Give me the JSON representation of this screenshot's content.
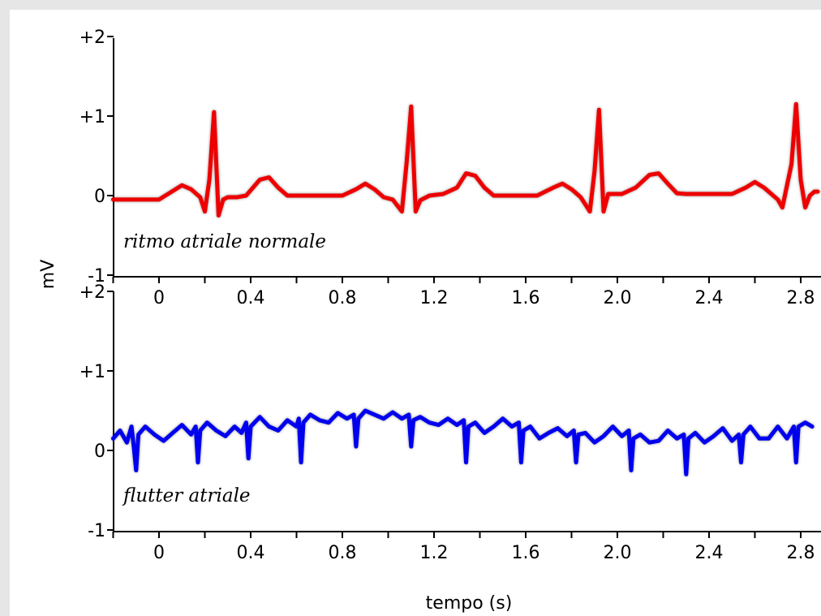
{
  "chart_data": {
    "type": "line",
    "ylabel": "mV",
    "xlabel": "tempo (s)",
    "x_ticks": [
      "0",
      "0.4",
      "0.8",
      "1.2",
      "1.6",
      "2.0",
      "2.4",
      "2.8"
    ],
    "x_tick_values": [
      0,
      0.4,
      0.8,
      1.2,
      1.6,
      2.0,
      2.4,
      2.8
    ],
    "xlim": [
      -0.2,
      2.9
    ],
    "ylim": [
      -1,
      2
    ],
    "y_ticks": [
      "-1",
      "0",
      "+1",
      "+2"
    ],
    "y_tick_values": [
      -1,
      0,
      1,
      2
    ],
    "grid": false,
    "panels": [
      {
        "annotation": "ritmo atriale normale",
        "color": "#ee0000",
        "series": {
          "x": [
            -0.2,
            -0.1,
            0.0,
            0.05,
            0.1,
            0.14,
            0.18,
            0.2,
            0.22,
            0.24,
            0.26,
            0.28,
            0.3,
            0.34,
            0.38,
            0.44,
            0.48,
            0.52,
            0.56,
            0.62,
            0.7,
            0.8,
            0.86,
            0.9,
            0.94,
            0.98,
            1.02,
            1.06,
            1.08,
            1.1,
            1.12,
            1.14,
            1.18,
            1.24,
            1.3,
            1.34,
            1.38,
            1.42,
            1.46,
            1.55,
            1.65,
            1.72,
            1.76,
            1.8,
            1.84,
            1.88,
            1.9,
            1.92,
            1.94,
            1.96,
            1.98,
            2.02,
            2.08,
            2.14,
            2.18,
            2.22,
            2.26,
            2.3,
            2.4,
            2.5,
            2.56,
            2.6,
            2.64,
            2.68,
            2.7,
            2.72,
            2.76,
            2.78,
            2.8,
            2.82,
            2.84,
            2.86,
            2.88
          ],
          "y": [
            -0.05,
            -0.05,
            -0.05,
            0.04,
            0.13,
            0.08,
            -0.02,
            -0.2,
            0.2,
            1.05,
            -0.25,
            -0.05,
            -0.02,
            -0.02,
            0.0,
            0.2,
            0.23,
            0.1,
            0.0,
            0.0,
            0.0,
            0.0,
            0.08,
            0.15,
            0.08,
            -0.02,
            -0.05,
            -0.2,
            0.4,
            1.12,
            -0.2,
            -0.06,
            0.0,
            0.02,
            0.1,
            0.28,
            0.25,
            0.1,
            0.0,
            0.0,
            0.0,
            0.1,
            0.15,
            0.08,
            -0.02,
            -0.2,
            0.3,
            1.08,
            -0.2,
            0.02,
            0.02,
            0.02,
            0.1,
            0.26,
            0.28,
            0.15,
            0.03,
            0.02,
            0.02,
            0.02,
            0.1,
            0.17,
            0.1,
            0.0,
            -0.05,
            -0.15,
            0.4,
            1.15,
            0.2,
            -0.15,
            0.0,
            0.05,
            0.05
          ]
        }
      },
      {
        "annotation": "flutter atriale",
        "color": "#0000ee",
        "series": {
          "x": [
            -0.2,
            -0.17,
            -0.14,
            -0.12,
            -0.11,
            -0.1,
            -0.09,
            -0.06,
            -0.02,
            0.02,
            0.06,
            0.1,
            0.14,
            0.16,
            0.17,
            0.18,
            0.21,
            0.25,
            0.29,
            0.33,
            0.36,
            0.38,
            0.39,
            0.4,
            0.44,
            0.48,
            0.52,
            0.56,
            0.6,
            0.61,
            0.62,
            0.63,
            0.66,
            0.7,
            0.74,
            0.78,
            0.82,
            0.85,
            0.86,
            0.87,
            0.9,
            0.94,
            0.98,
            1.02,
            1.06,
            1.09,
            1.1,
            1.11,
            1.14,
            1.18,
            1.22,
            1.26,
            1.3,
            1.33,
            1.34,
            1.35,
            1.38,
            1.42,
            1.46,
            1.5,
            1.54,
            1.57,
            1.58,
            1.59,
            1.62,
            1.66,
            1.7,
            1.74,
            1.78,
            1.81,
            1.82,
            1.83,
            1.86,
            1.9,
            1.94,
            1.98,
            2.02,
            2.05,
            2.06,
            2.07,
            2.1,
            2.14,
            2.18,
            2.22,
            2.26,
            2.29,
            2.3,
            2.31,
            2.34,
            2.38,
            2.42,
            2.46,
            2.5,
            2.53,
            2.54,
            2.55,
            2.58,
            2.62,
            2.66,
            2.7,
            2.74,
            2.77,
            2.78,
            2.79,
            2.82,
            2.85
          ],
          "y": [
            0.15,
            0.25,
            0.1,
            0.3,
            0.05,
            -0.25,
            0.2,
            0.3,
            0.2,
            0.12,
            0.22,
            0.32,
            0.2,
            0.3,
            -0.15,
            0.25,
            0.35,
            0.25,
            0.18,
            0.3,
            0.22,
            0.35,
            -0.1,
            0.3,
            0.42,
            0.3,
            0.25,
            0.38,
            0.3,
            0.4,
            -0.15,
            0.35,
            0.45,
            0.38,
            0.35,
            0.47,
            0.4,
            0.45,
            0.05,
            0.4,
            0.5,
            0.45,
            0.4,
            0.48,
            0.4,
            0.45,
            0.05,
            0.38,
            0.42,
            0.35,
            0.32,
            0.4,
            0.32,
            0.38,
            -0.15,
            0.3,
            0.35,
            0.22,
            0.3,
            0.4,
            0.3,
            0.35,
            -0.15,
            0.25,
            0.3,
            0.15,
            0.22,
            0.28,
            0.18,
            0.25,
            -0.15,
            0.2,
            0.22,
            0.1,
            0.18,
            0.3,
            0.18,
            0.25,
            -0.25,
            0.15,
            0.2,
            0.1,
            0.12,
            0.25,
            0.15,
            0.2,
            -0.3,
            0.15,
            0.22,
            0.1,
            0.18,
            0.28,
            0.12,
            0.2,
            -0.15,
            0.2,
            0.3,
            0.15,
            0.15,
            0.3,
            0.15,
            0.3,
            -0.15,
            0.3,
            0.35,
            0.3
          ]
        }
      }
    ]
  }
}
